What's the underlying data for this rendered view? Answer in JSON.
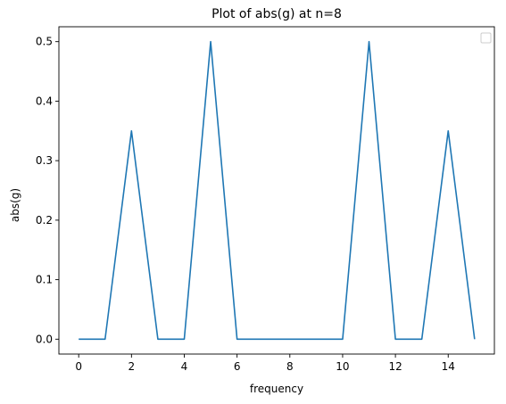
{
  "chart_data": {
    "type": "line",
    "title": "Plot of abs(g) at n=8",
    "xlabel": "frequency",
    "ylabel": "abs(g)",
    "xlim": [
      -0.75,
      15.75
    ],
    "ylim": [
      -0.025,
      0.525
    ],
    "xticks": [
      0,
      2,
      4,
      6,
      8,
      10,
      12,
      14
    ],
    "xtick_labels": [
      "0",
      "2",
      "4",
      "6",
      "8",
      "10",
      "12",
      "14"
    ],
    "yticks": [
      0.0,
      0.1,
      0.2,
      0.3,
      0.4,
      0.5
    ],
    "ytick_labels": [
      "0.0",
      "0.1",
      "0.2",
      "0.3",
      "0.4",
      "0.5"
    ],
    "grid": false,
    "legend": {
      "placement": "top-right",
      "entries": []
    },
    "series": [
      {
        "color": "#1f77b4",
        "x": [
          0,
          1,
          2,
          3,
          4,
          5,
          6,
          7,
          8,
          9,
          10,
          11,
          12,
          13,
          14,
          15
        ],
        "y": [
          0.0,
          0.0,
          0.35,
          0.0,
          0.0,
          0.5,
          0.0,
          0.0,
          0.0,
          0.0,
          0.0,
          0.5,
          0.0,
          0.0,
          0.35,
          0.0
        ]
      }
    ]
  }
}
